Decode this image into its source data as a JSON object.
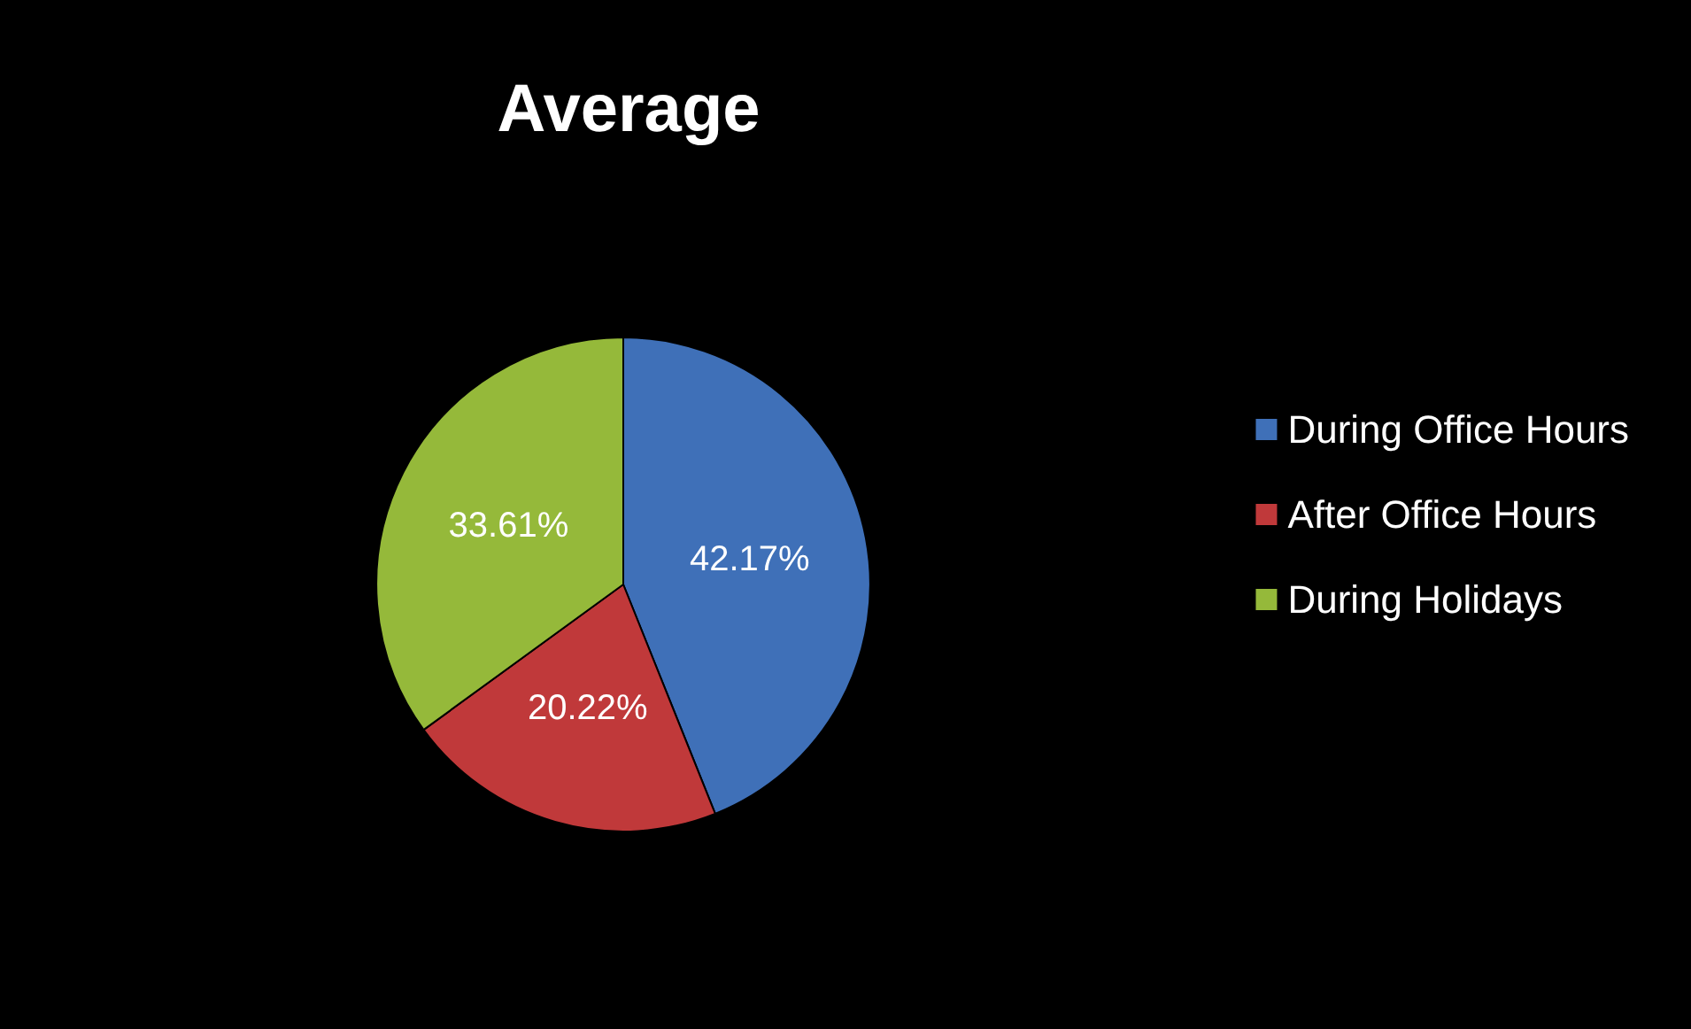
{
  "chart_data": {
    "type": "pie",
    "title": "Average",
    "categories": [
      "During Office Hours",
      "After Office Hours",
      "During Holidays"
    ],
    "values": [
      42.17,
      20.22,
      33.61
    ],
    "value_labels": [
      "42.17%",
      "20.22%",
      "33.61%"
    ],
    "colors": [
      "#3f70b8",
      "#c0393a",
      "#95b93a"
    ],
    "legend": "right"
  }
}
